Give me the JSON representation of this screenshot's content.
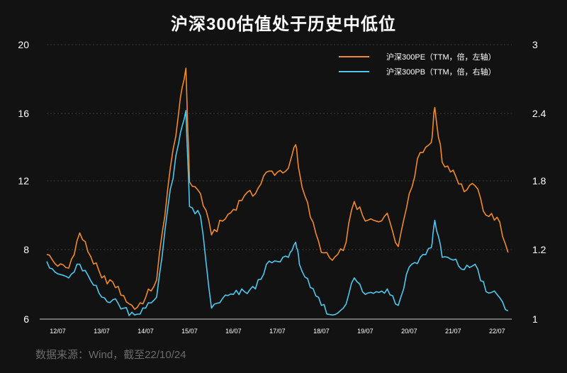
{
  "chart_data": {
    "type": "line",
    "title": "沪深300估值处于历史中低位",
    "source": "数据来源：Wind，截至22/10/24",
    "x_ticks": [
      "12/07",
      "13/07",
      "14/07",
      "15/07",
      "16/07",
      "17/07",
      "18/07",
      "19/07",
      "20/07",
      "21/07",
      "22/07"
    ],
    "y_left": {
      "ticks": [
        "6",
        "8",
        "12",
        "16",
        "20"
      ],
      "ylim": [
        6,
        20
      ]
    },
    "y_right": {
      "ticks": [
        "1",
        "1.2",
        "1.8",
        "2.4",
        "3"
      ],
      "ylim": [
        1,
        3
      ]
    },
    "grid": true,
    "legend_position": "top-right",
    "series": [
      {
        "name": "沪深300PE（TTM，倍，左轴）",
        "axis": "left",
        "color": "#f08a2c",
        "x": [
          "2012-04",
          "2012-07",
          "2012-10",
          "2013-01",
          "2013-04",
          "2013-07",
          "2013-10",
          "2014-01",
          "2014-04",
          "2014-07",
          "2014-10",
          "2015-01",
          "2015-04",
          "2015-06",
          "2015-07",
          "2015-10",
          "2016-01",
          "2016-04",
          "2016-07",
          "2016-10",
          "2017-01",
          "2017-04",
          "2017-07",
          "2017-10",
          "2017-12",
          "2018-01",
          "2018-04",
          "2018-07",
          "2018-10",
          "2019-01",
          "2019-04",
          "2019-07",
          "2019-10",
          "2020-01",
          "2020-04",
          "2020-07",
          "2020-10",
          "2021-01",
          "2021-02",
          "2021-04",
          "2021-07",
          "2021-10",
          "2022-01",
          "2022-04",
          "2022-07",
          "2022-10"
        ],
        "values": [
          9.3,
          8.7,
          8.6,
          10.4,
          9.2,
          8.1,
          7.9,
          7.2,
          6.5,
          7.1,
          8.0,
          12.6,
          16.5,
          18.8,
          13.0,
          12.4,
          10.3,
          11.0,
          11.6,
          12.3,
          12.4,
          13.5,
          13.5,
          13.7,
          14.9,
          13.5,
          11.2,
          9.4,
          9.0,
          9.5,
          12.0,
          11.0,
          11.0,
          11.4,
          9.7,
          12.4,
          14.5,
          15.0,
          16.8,
          14.0,
          13.6,
          12.5,
          12.8,
          11.3,
          11.2,
          9.4
        ]
      },
      {
        "name": "沪深300PB（TTM，倍，右轴）",
        "axis": "right",
        "color": "#4ec8ee",
        "x": [
          "2012-04",
          "2012-07",
          "2012-10",
          "2013-01",
          "2013-04",
          "2013-07",
          "2013-10",
          "2014-01",
          "2014-04",
          "2014-07",
          "2014-10",
          "2015-01",
          "2015-04",
          "2015-06",
          "2015-07",
          "2015-10",
          "2016-01",
          "2016-04",
          "2016-07",
          "2016-10",
          "2017-01",
          "2017-04",
          "2017-07",
          "2017-10",
          "2017-12",
          "2018-01",
          "2018-04",
          "2018-07",
          "2018-10",
          "2019-01",
          "2019-04",
          "2019-07",
          "2019-10",
          "2020-01",
          "2020-04",
          "2020-07",
          "2020-10",
          "2021-01",
          "2021-02",
          "2021-04",
          "2021-07",
          "2021-10",
          "2022-01",
          "2022-04",
          "2022-07",
          "2022-10"
        ],
        "values": [
          1.42,
          1.33,
          1.3,
          1.4,
          1.28,
          1.16,
          1.14,
          1.08,
          1.03,
          1.08,
          1.16,
          1.8,
          2.28,
          2.52,
          1.82,
          1.75,
          1.08,
          1.15,
          1.18,
          1.2,
          1.22,
          1.4,
          1.42,
          1.45,
          1.56,
          1.4,
          1.23,
          1.1,
          1.03,
          1.08,
          1.3,
          1.18,
          1.2,
          1.22,
          1.1,
          1.38,
          1.45,
          1.52,
          1.72,
          1.45,
          1.43,
          1.36,
          1.4,
          1.2,
          1.18,
          1.06
        ]
      }
    ]
  }
}
